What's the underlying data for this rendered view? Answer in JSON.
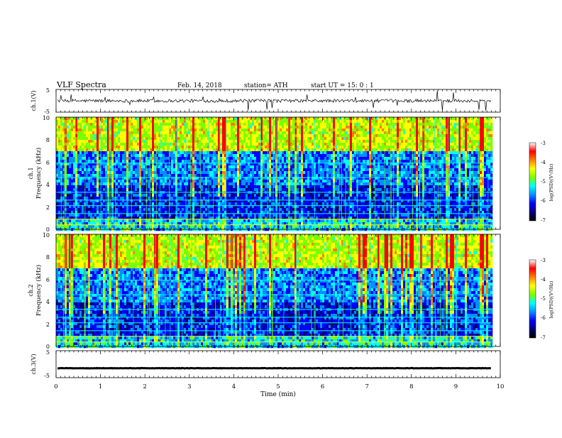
{
  "header": {
    "title": "VLF  Spectra",
    "date": "Feb. 14, 2018",
    "station": "station= ATH",
    "start_ut": "start  UT  =    15: 0  : 1"
  },
  "chart_data": [
    {
      "type": "line",
      "panel": "ch1-waveform",
      "ylabel": "ch.1(V)",
      "ylim": [
        -5,
        5
      ],
      "y_ticks": [
        "5",
        "-5"
      ],
      "baseline_v": 0,
      "xlim": [
        0,
        10
      ],
      "data_end_min": 9.8
    },
    {
      "type": "heatmap",
      "panel": "ch1-spectrogram",
      "ylabel_top": "ch.1",
      "ylabel": "Frequency  (kHz)",
      "ylim": [
        0,
        10
      ],
      "y_ticks": [
        "0",
        "2",
        "4",
        "6",
        "8",
        "10"
      ],
      "xlim": [
        0,
        10
      ],
      "data_end_min": 9.8,
      "colorbar": {
        "label": "log(PSD)(V²/Hz)",
        "range": [
          -7,
          -3
        ],
        "ticks": [
          "-3",
          "-4",
          "-5",
          "-6",
          "-7"
        ]
      }
    },
    {
      "type": "heatmap",
      "panel": "ch2-spectrogram",
      "ylabel_top": "ch.2",
      "ylabel": "Frequency  (kHz)",
      "ylim": [
        0,
        10
      ],
      "y_ticks": [
        "0",
        "2",
        "4",
        "6",
        "8",
        "10"
      ],
      "xlim": [
        0,
        10
      ],
      "data_end_min": 9.8,
      "colorbar": {
        "label": "log(PSD)(V²/Hz)",
        "range": [
          -7,
          -3
        ],
        "ticks": [
          "-3",
          "-4",
          "-5",
          "-6",
          "-7"
        ]
      }
    },
    {
      "type": "line",
      "panel": "ch3-waveform",
      "ylabel": "ch.3(V)",
      "ylim": [
        -5,
        5
      ],
      "y_ticks": [
        "5",
        "-5"
      ],
      "baseline_v": -1.5,
      "xlim": [
        0,
        10
      ],
      "data_end_min": 9.8,
      "x_ticks": [
        "0",
        "1",
        "2",
        "3",
        "4",
        "5",
        "6",
        "7",
        "8",
        "9",
        "10"
      ],
      "xlabel": "Time  (min)"
    }
  ],
  "colors": {
    "colormap": [
      "#000000",
      "#00007a",
      "#0000ff",
      "#0090ff",
      "#00ffff",
      "#7cff00",
      "#ffff00",
      "#ff8000",
      "#ff0000",
      "#ffffff"
    ],
    "trace": "#000000"
  }
}
